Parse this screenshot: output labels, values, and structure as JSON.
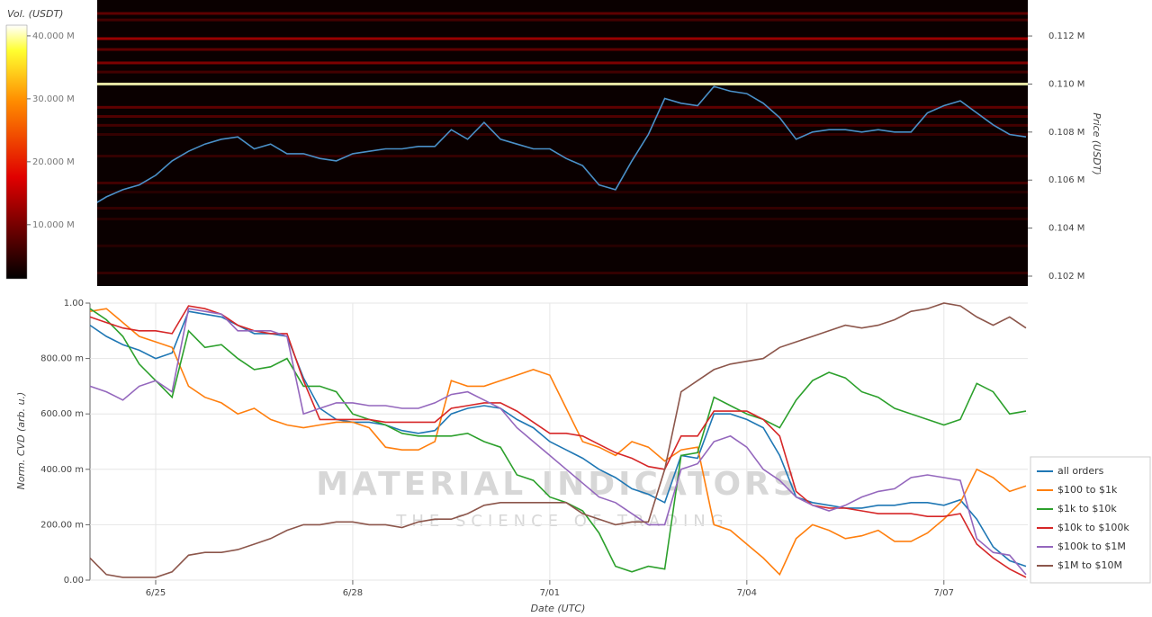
{
  "chart_data": [
    {
      "type": "heatmap",
      "colorbar_title": "Vol. (USDT)",
      "y_label": "Price (USDT)",
      "ylim": [
        0.101588,
        0.1135
      ],
      "yticks": [
        {
          "value": 0.102,
          "label": "0.102 M"
        },
        {
          "value": 0.104,
          "label": "0.104 M"
        },
        {
          "value": 0.106,
          "label": "0.106 M"
        },
        {
          "value": 0.108,
          "label": "0.108 M"
        },
        {
          "value": 0.11,
          "label": "0.110 M"
        },
        {
          "value": 0.112,
          "label": "0.112 M"
        }
      ],
      "clim": [
        1.4,
        41.7
      ],
      "cticks": [
        {
          "value": 10,
          "label": "10.000 M"
        },
        {
          "value": 20,
          "label": "20.000 M"
        },
        {
          "value": 30,
          "label": "30.000 M"
        },
        {
          "value": 40,
          "label": "40.000 M"
        }
      ],
      "levels": [
        0.11294,
        0.11267,
        0.11189,
        0.11144,
        0.11088,
        0.1105,
        0.11,
        0.10903,
        0.10865,
        0.10828,
        0.1079,
        0.107,
        0.10588,
        0.1055,
        0.10483,
        0.10438,
        0.10326,
        0.10213
      ],
      "level_values": [
        8,
        6,
        12,
        8,
        10,
        6,
        40,
        8,
        7,
        6,
        5,
        5,
        6,
        4,
        5,
        4,
        4,
        5
      ],
      "series": [
        {
          "color": "#4a90c8",
          "values": [
            0.1049,
            0.1053,
            0.1056,
            0.1058,
            0.1062,
            0.1068,
            0.1072,
            0.1075,
            0.1077,
            0.1078,
            0.1073,
            0.1075,
            0.1071,
            0.1071,
            0.1069,
            0.1068,
            0.1071,
            0.1072,
            0.1073,
            0.1073,
            0.1074,
            0.1074,
            0.1081,
            0.1077,
            0.1084,
            0.1077,
            0.1075,
            0.1073,
            0.1073,
            0.1069,
            0.1066,
            0.1058,
            0.1056,
            0.1068,
            0.1079,
            0.1094,
            0.1092,
            0.1091,
            0.1099,
            0.1097,
            0.1096,
            0.1092,
            0.1086,
            0.1077,
            0.108,
            0.1081,
            0.1081,
            0.108,
            0.1081,
            0.108,
            0.108,
            0.1088,
            0.1091,
            0.1093,
            0.1088,
            0.1083,
            0.1079,
            0.1078
          ]
        }
      ]
    },
    {
      "type": "line",
      "x_label": "Date (UTC)",
      "y_label": "Norm. CVD (arb. u.)",
      "grid": true,
      "watermark": "MATERIAL INDICATORS",
      "watermark_sub": "THE SCIENCE OF TRADING",
      "ylim": [
        0,
        1
      ],
      "yticks": [
        {
          "value": 0,
          "label": "0.00"
        },
        {
          "value": 0.2,
          "label": "200.00 m"
        },
        {
          "value": 0.4,
          "label": "400.00 m"
        },
        {
          "value": 0.6,
          "label": "600.00 m"
        },
        {
          "value": 0.8,
          "label": "800.00 m"
        },
        {
          "value": 1,
          "label": "1.00"
        }
      ],
      "categories": [
        null,
        null,
        null,
        null,
        "6/25",
        null,
        null,
        null,
        null,
        null,
        null,
        null,
        null,
        null,
        null,
        null,
        "6/28",
        null,
        null,
        null,
        null,
        null,
        null,
        null,
        null,
        null,
        null,
        null,
        "7/01",
        null,
        null,
        null,
        null,
        null,
        null,
        null,
        null,
        null,
        null,
        null,
        "7/04",
        null,
        null,
        null,
        null,
        null,
        null,
        null,
        null,
        null,
        null,
        null,
        "7/07",
        null,
        null,
        null,
        null,
        null
      ],
      "series": [
        {
          "name": "all orders",
          "color": "#1f77b4",
          "values": [
            0.92,
            0.88,
            0.85,
            0.83,
            0.8,
            0.82,
            0.97,
            0.96,
            0.95,
            0.92,
            0.89,
            0.89,
            0.88,
            0.73,
            0.62,
            0.58,
            0.57,
            0.57,
            0.56,
            0.54,
            0.53,
            0.54,
            0.6,
            0.62,
            0.63,
            0.62,
            0.58,
            0.55,
            0.5,
            0.47,
            0.44,
            0.4,
            0.37,
            0.33,
            0.31,
            0.28,
            0.45,
            0.44,
            0.6,
            0.6,
            0.58,
            0.55,
            0.45,
            0.3,
            0.28,
            0.27,
            0.26,
            0.26,
            0.27,
            0.27,
            0.28,
            0.28,
            0.27,
            0.29,
            0.22,
            0.12,
            0.07,
            0.05
          ]
        },
        {
          "name": "$100 to $1k",
          "color": "#ff7f0e",
          "values": [
            0.97,
            0.98,
            0.93,
            0.88,
            0.86,
            0.84,
            0.7,
            0.66,
            0.64,
            0.6,
            0.62,
            0.58,
            0.56,
            0.55,
            0.56,
            0.57,
            0.57,
            0.55,
            0.48,
            0.47,
            0.47,
            0.5,
            0.72,
            0.7,
            0.7,
            0.72,
            0.74,
            0.76,
            0.74,
            0.62,
            0.5,
            0.48,
            0.45,
            0.5,
            0.48,
            0.43,
            0.47,
            0.48,
            0.2,
            0.18,
            0.13,
            0.08,
            0.02,
            0.15,
            0.2,
            0.18,
            0.15,
            0.16,
            0.18,
            0.14,
            0.14,
            0.17,
            0.22,
            0.28,
            0.4,
            0.37,
            0.32,
            0.34
          ]
        },
        {
          "name": "$1k to $10k",
          "color": "#2ca02c",
          "values": [
            0.98,
            0.94,
            0.88,
            0.78,
            0.72,
            0.66,
            0.9,
            0.84,
            0.85,
            0.8,
            0.76,
            0.77,
            0.8,
            0.7,
            0.7,
            0.68,
            0.6,
            0.58,
            0.56,
            0.53,
            0.52,
            0.52,
            0.52,
            0.53,
            0.5,
            0.48,
            0.38,
            0.36,
            0.3,
            0.28,
            0.25,
            0.17,
            0.05,
            0.03,
            0.05,
            0.04,
            0.45,
            0.46,
            0.66,
            0.63,
            0.6,
            0.58,
            0.55,
            0.65,
            0.72,
            0.75,
            0.73,
            0.68,
            0.66,
            0.62,
            0.6,
            0.58,
            0.56,
            0.58,
            0.71,
            0.68,
            0.6,
            0.61
          ]
        },
        {
          "name": "$10k to $100k",
          "color": "#d62728",
          "values": [
            0.95,
            0.93,
            0.91,
            0.9,
            0.9,
            0.89,
            0.99,
            0.98,
            0.96,
            0.92,
            0.9,
            0.89,
            0.89,
            0.72,
            0.58,
            0.58,
            0.58,
            0.58,
            0.57,
            0.57,
            0.57,
            0.57,
            0.62,
            0.63,
            0.64,
            0.64,
            0.61,
            0.57,
            0.53,
            0.53,
            0.52,
            0.49,
            0.46,
            0.44,
            0.41,
            0.4,
            0.52,
            0.52,
            0.61,
            0.61,
            0.61,
            0.58,
            0.52,
            0.32,
            0.27,
            0.26,
            0.26,
            0.25,
            0.24,
            0.24,
            0.24,
            0.23,
            0.23,
            0.24,
            0.13,
            0.08,
            0.04,
            0.01
          ]
        },
        {
          "name": "$100k to $1M",
          "color": "#9467bd",
          "values": [
            0.7,
            0.68,
            0.65,
            0.7,
            0.72,
            0.68,
            0.98,
            0.97,
            0.96,
            0.9,
            0.9,
            0.9,
            0.88,
            0.6,
            0.62,
            0.64,
            0.64,
            0.63,
            0.63,
            0.62,
            0.62,
            0.64,
            0.67,
            0.68,
            0.65,
            0.62,
            0.55,
            0.5,
            0.45,
            0.4,
            0.35,
            0.3,
            0.28,
            0.24,
            0.2,
            0.2,
            0.4,
            0.42,
            0.5,
            0.52,
            0.48,
            0.4,
            0.36,
            0.3,
            0.27,
            0.25,
            0.27,
            0.3,
            0.32,
            0.33,
            0.37,
            0.38,
            0.37,
            0.36,
            0.15,
            0.1,
            0.09,
            0.02
          ]
        },
        {
          "name": "$1M to $10M",
          "color": "#8c564b",
          "values": [
            0.08,
            0.02,
            0.01,
            0.01,
            0.01,
            0.03,
            0.09,
            0.1,
            0.1,
            0.11,
            0.13,
            0.15,
            0.18,
            0.2,
            0.2,
            0.21,
            0.21,
            0.2,
            0.2,
            0.19,
            0.21,
            0.22,
            0.22,
            0.24,
            0.27,
            0.28,
            0.28,
            0.28,
            0.28,
            0.28,
            0.24,
            0.22,
            0.2,
            0.21,
            0.21,
            0.4,
            0.68,
            0.72,
            0.76,
            0.78,
            0.79,
            0.8,
            0.84,
            0.86,
            0.88,
            0.9,
            0.92,
            0.91,
            0.92,
            0.94,
            0.97,
            0.98,
            1,
            0.99,
            0.95,
            0.92,
            0.95,
            0.91
          ]
        }
      ]
    }
  ]
}
